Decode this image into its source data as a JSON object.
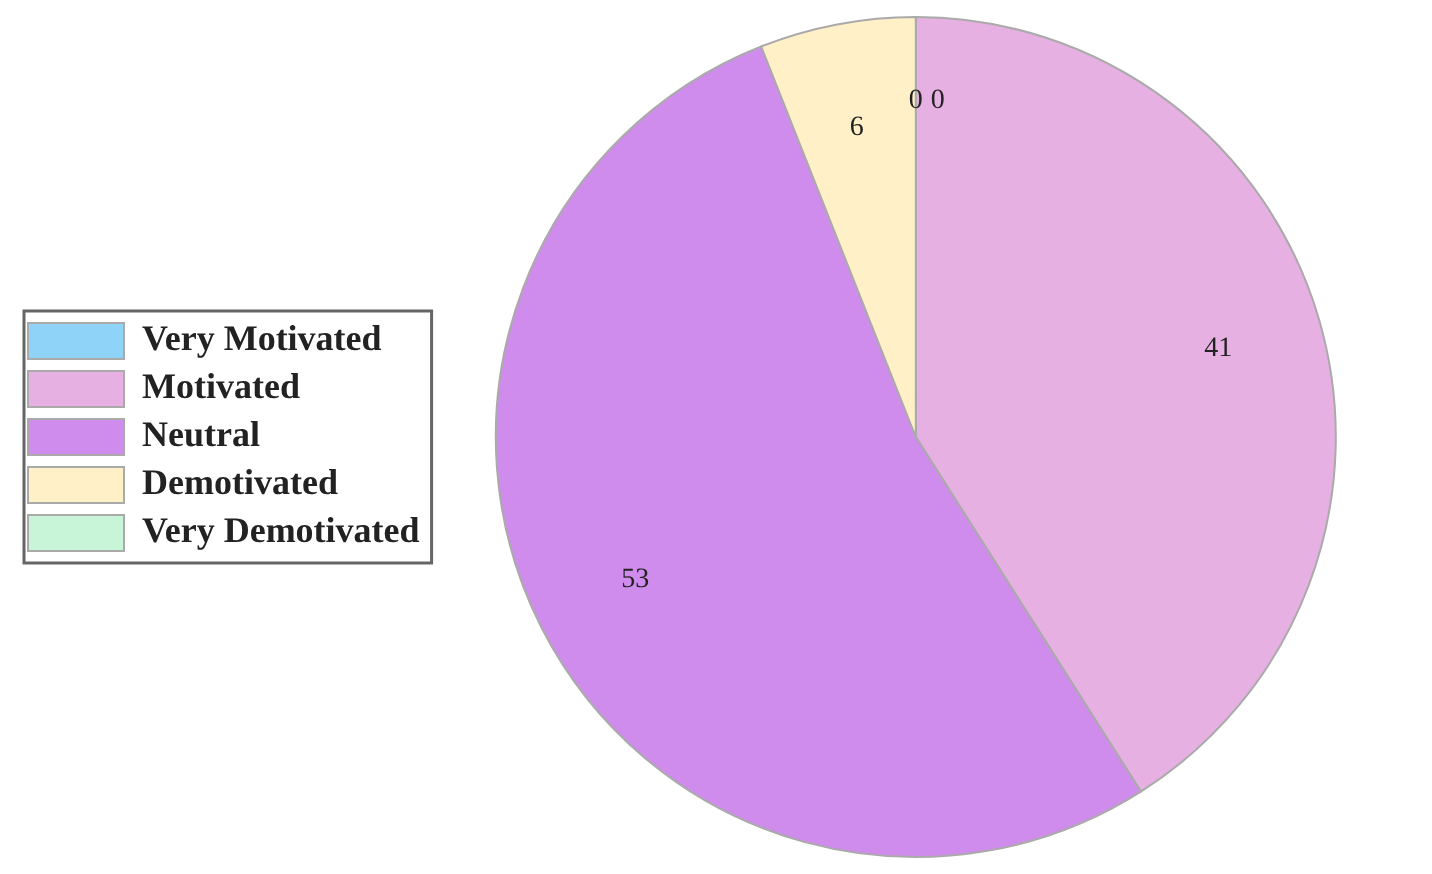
{
  "chart_data": {
    "type": "pie",
    "categories": [
      "Very Motivated",
      "Motivated",
      "Neutral",
      "Demotivated",
      "Very Demotivated"
    ],
    "values": [
      0,
      41,
      53,
      6,
      0
    ],
    "colors": [
      "#8fd3f9",
      "#e6b0e3",
      "#d08ced",
      "#fff0c8",
      "#c8f5d8"
    ],
    "value_labels": [
      "0",
      "41",
      "53",
      "6",
      "0"
    ],
    "legend": "left"
  }
}
